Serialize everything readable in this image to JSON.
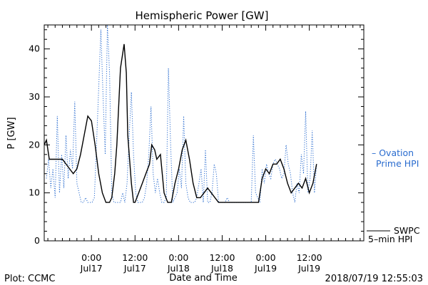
{
  "chart_data": {
    "type": "line",
    "title": "Hemispheric Power [GW]",
    "xlabel": "Date and Time",
    "ylabel": "P [GW]",
    "ylim": [
      0,
      45
    ],
    "xlim": [
      -6.5,
      37.5
    ],
    "grid": false,
    "y_ticks": [
      0,
      10,
      20,
      30,
      40
    ],
    "x_ticks": [
      {
        "value": 0,
        "time": "0:00",
        "date": "Jul17"
      },
      {
        "value": 6,
        "time": "12:00",
        "date": "Jul17"
      },
      {
        "value": 12,
        "time": "0:00",
        "date": "Jul18"
      },
      {
        "value": 18,
        "time": "12:00",
        "date": "Jul18"
      },
      {
        "value": 24,
        "time": "0:00",
        "date": "Jul19"
      },
      {
        "value": 30,
        "time": "12:00",
        "date": "Jul19"
      }
    ],
    "series": [
      {
        "name": "Ovation Prime HPI",
        "legend_lines": [
          "– Ovation",
          "Prime HPI"
        ],
        "color": "#2a6ccf",
        "style": "dotted",
        "x": [
          -6.2,
          -5.9,
          -5.6,
          -5.3,
          -5.0,
          -4.7,
          -4.4,
          -4.1,
          -3.8,
          -3.5,
          -3.2,
          -2.9,
          -2.6,
          -2.3,
          -2.0,
          -1.7,
          -1.4,
          -1.1,
          -0.8,
          -0.5,
          -0.2,
          0.1,
          0.4,
          0.7,
          1.0,
          1.3,
          1.6,
          1.9,
          2.2,
          2.5,
          2.8,
          3.1,
          3.4,
          3.7,
          4.0,
          4.3,
          4.6,
          4.9,
          5.2,
          5.5,
          5.8,
          6.1,
          6.4,
          6.7,
          7.0,
          7.3,
          7.6,
          7.9,
          8.2,
          8.5,
          8.8,
          9.1,
          9.4,
          9.7,
          10.0,
          10.3,
          10.6,
          10.9,
          11.2,
          11.5,
          11.8,
          12.1,
          12.4,
          12.7,
          13.0,
          13.3,
          13.6,
          13.9,
          14.2,
          14.5,
          14.8,
          15.1,
          15.4,
          15.7,
          16.0,
          16.3,
          16.6,
          16.9,
          17.2,
          17.5,
          17.8,
          18.1,
          18.4,
          18.7,
          19.0,
          19.3,
          19.6,
          19.9,
          20.2,
          20.5,
          20.8,
          21.1,
          21.4,
          21.7,
          22.0,
          22.3,
          22.6,
          22.9,
          23.2,
          23.5,
          23.8,
          24.1,
          24.4,
          24.7,
          25.0,
          25.3,
          25.6,
          25.9,
          26.2,
          26.5,
          26.8,
          27.1,
          27.4,
          27.7,
          28.0,
          28.3,
          28.6,
          28.9,
          29.2,
          29.5,
          29.8,
          30.1,
          30.4,
          30.7,
          31.0
        ],
        "y": [
          13,
          17,
          11,
          15,
          9,
          26,
          10,
          18,
          11,
          22,
          13,
          19,
          15,
          29,
          12,
          10,
          8,
          8,
          9,
          8,
          8,
          8,
          9,
          20,
          32,
          44,
          30,
          18,
          45,
          35,
          10,
          8,
          8,
          8,
          8,
          10,
          8,
          12,
          22,
          31,
          18,
          10,
          8,
          8,
          8,
          9,
          12,
          18,
          28,
          14,
          10,
          13,
          10,
          8,
          8,
          9,
          36,
          20,
          8,
          9,
          10,
          15,
          11,
          26,
          12,
          9,
          8,
          8,
          8,
          9,
          12,
          15,
          8,
          19,
          8,
          8,
          10,
          16,
          14,
          8,
          8,
          8,
          8,
          9,
          8,
          8,
          8,
          8,
          8,
          8,
          8,
          8,
          8,
          8,
          8,
          22,
          10,
          9,
          8,
          15,
          12,
          16,
          14,
          13,
          16,
          17,
          16,
          15,
          13,
          14,
          20,
          16,
          14,
          10,
          8,
          12,
          10,
          18,
          14,
          27,
          10,
          13,
          23,
          10,
          16
        ],
        "values": [
          13,
          17,
          11,
          15,
          9,
          26,
          10,
          18,
          11,
          22,
          13,
          19,
          15,
          29,
          12,
          10,
          8,
          8,
          9,
          8,
          8,
          8,
          9,
          20,
          32,
          44,
          30,
          18,
          45,
          35,
          10,
          8,
          8,
          8,
          8,
          10,
          8,
          12,
          22,
          31,
          18,
          10,
          8,
          8,
          8,
          9,
          12,
          18,
          28,
          14,
          10,
          13,
          10,
          8,
          8,
          9,
          36,
          20,
          8,
          9,
          10,
          15,
          11,
          26,
          12,
          9,
          8,
          8,
          8,
          9,
          12,
          15,
          8,
          19,
          8,
          8,
          10,
          16,
          14,
          8,
          8,
          8,
          8,
          9,
          8,
          8,
          8,
          8,
          8,
          8,
          8,
          8,
          8,
          8,
          8,
          22,
          10,
          9,
          8,
          15,
          12,
          16,
          14,
          13,
          16,
          17,
          16,
          15,
          13,
          14,
          20,
          16,
          14,
          10,
          8,
          12,
          10,
          18,
          14,
          27,
          10,
          13,
          23,
          10,
          16
        ]
      },
      {
        "name": "SWPC 5-min HPI",
        "legend_lines": [
          "SWPC",
          "5–min HPI"
        ],
        "color": "#000000",
        "style": "solid",
        "x": [
          -6.5,
          -6.2,
          -5.8,
          -5.0,
          -4.0,
          -3.0,
          -2.5,
          -2.0,
          -1.5,
          -1.0,
          -0.5,
          0.0,
          0.5,
          1.0,
          1.5,
          2.0,
          2.5,
          2.8,
          3.2,
          3.5,
          4.0,
          4.5,
          4.8,
          5.0,
          5.5,
          5.8,
          6.0,
          6.5,
          7.0,
          7.5,
          8.0,
          8.3,
          8.7,
          9.0,
          9.5,
          10.0,
          10.5,
          11.0,
          11.5,
          12.0,
          12.5,
          13.0,
          13.5,
          14.0,
          14.5,
          15.0,
          15.5,
          16.0,
          16.5,
          17.0,
          17.5,
          18.0,
          19.0,
          20.0,
          21.0,
          22.0,
          23.0,
          23.5,
          24.0,
          24.5,
          25.0,
          25.5,
          26.0,
          26.5,
          27.0,
          27.5,
          28.0,
          28.5,
          29.0,
          29.5,
          30.0,
          30.5,
          31.0
        ],
        "y": [
          20,
          21,
          17,
          17,
          17,
          15,
          14,
          15,
          18,
          22,
          26,
          25,
          20,
          14,
          10,
          8,
          8,
          9,
          14,
          20,
          36,
          41,
          35,
          22,
          12,
          8,
          8,
          10,
          12,
          14,
          16,
          20,
          19,
          17,
          18,
          10,
          8,
          8,
          12,
          15,
          19,
          21,
          17,
          12,
          9,
          9,
          10,
          11,
          10,
          9,
          8,
          8,
          8,
          8,
          8,
          8,
          8,
          13,
          15,
          14,
          16,
          16,
          17,
          15,
          12,
          10,
          11,
          12,
          11,
          13,
          10,
          12,
          16
        ]
      }
    ]
  },
  "footer": {
    "plot_by": "Plot: CCMC",
    "timestamp": "2018/07/19 12:55:03"
  }
}
